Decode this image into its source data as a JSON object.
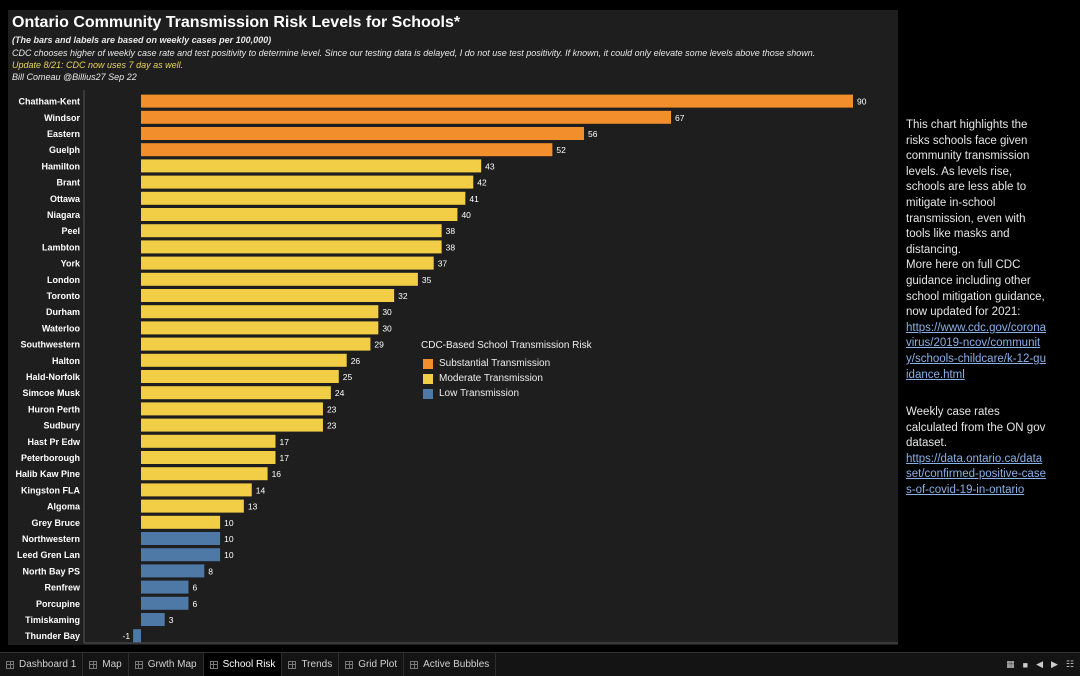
{
  "header": {
    "title": "Ontario Community Transmission Risk Levels for Schools*",
    "subtitle": "(The bars and labels are based on weekly cases per 100,000)",
    "note": "CDC chooses higher of weekly case rate and  test positivity to determine level. Since our testing data is delayed, I do not use test positivity. If known, it could only elevate some levels above those shown.",
    "update": "Update 8/21: CDC now uses 7 day as well.",
    "byline": "Bill Comeau @Billius27  Sep 22"
  },
  "chart_data": {
    "type": "bar",
    "orientation": "horizontal",
    "categories": [
      "Chatham-Kent",
      "Windsor",
      "Eastern",
      "Guelph",
      "Hamilton",
      "Brant",
      "Ottawa",
      "Niagara",
      "Peel",
      "Lambton",
      "York",
      "London",
      "Toronto",
      "Durham",
      "Waterloo",
      "Southwestern",
      "Halton",
      "Hald-Norfolk",
      "Simcoe Musk",
      "Huron Perth",
      "Sudbury",
      "Hast Pr Edw",
      "Peterborough",
      "Halib Kaw Pine",
      "Kingston FLA",
      "Algoma",
      "Grey Bruce",
      "Northwestern",
      "Leed Gren Lan",
      "North Bay PS",
      "Renfrew",
      "Porcupine",
      "Timiskaming",
      "Thunder Bay"
    ],
    "values": [
      90,
      67,
      56,
      52,
      43,
      42,
      41,
      40,
      38,
      38,
      37,
      35,
      32,
      30,
      30,
      29,
      26,
      25,
      24,
      23,
      23,
      17,
      17,
      16,
      14,
      13,
      10,
      10,
      10,
      8,
      6,
      6,
      3,
      -1
    ],
    "levels": [
      "Substantial Transmission",
      "Substantial Transmission",
      "Substantial Transmission",
      "Substantial Transmission",
      "Moderate Transmission",
      "Moderate Transmission",
      "Moderate Transmission",
      "Moderate Transmission",
      "Moderate Transmission",
      "Moderate Transmission",
      "Moderate Transmission",
      "Moderate Transmission",
      "Moderate Transmission",
      "Moderate Transmission",
      "Moderate Transmission",
      "Moderate Transmission",
      "Moderate Transmission",
      "Moderate Transmission",
      "Moderate Transmission",
      "Moderate Transmission",
      "Moderate Transmission",
      "Moderate Transmission",
      "Moderate Transmission",
      "Moderate Transmission",
      "Moderate Transmission",
      "Moderate Transmission",
      "Moderate Transmission",
      "Low Transmission",
      "Low Transmission",
      "Low Transmission",
      "Low Transmission",
      "Low Transmission",
      "Low Transmission",
      "Low Transmission"
    ],
    "xlim": [
      -1,
      92
    ],
    "legend": {
      "title": "CDC-Based School Transmission Risk",
      "items": [
        {
          "label": "Substantial Transmission",
          "color": "#f28e2b"
        },
        {
          "label": "Moderate Transmission",
          "color": "#f1ce46"
        },
        {
          "label": "Low Transmission",
          "color": "#4e79a7"
        }
      ]
    }
  },
  "sidenote": {
    "para1": "This chart highlights the risks schools face given community transmission levels. As levels rise, schools are less able to mitigate in-school transmission, even with tools like masks and distancing.",
    "para2": "More here on full CDC guidance including other school mitigation guidance, now updated for 2021:",
    "link1": "https://www.cdc.gov/coronavirus/2019-ncov/community/schools-childcare/k-12-guidance.html",
    "para3": "Weekly case rates calculated from the ON gov dataset.",
    "link2": "https://data.ontario.ca/dataset/confirmed-positive-cases-of-covid-19-in-ontario"
  },
  "tabs": [
    {
      "label": "Dashboard 1",
      "active": false
    },
    {
      "label": "Map",
      "active": false
    },
    {
      "label": "Grwth Map",
      "active": false
    },
    {
      "label": "School Risk",
      "active": true
    },
    {
      "label": "Trends",
      "active": false
    },
    {
      "label": "Grid Plot",
      "active": false
    },
    {
      "label": "Active Bubbles",
      "active": false
    }
  ]
}
